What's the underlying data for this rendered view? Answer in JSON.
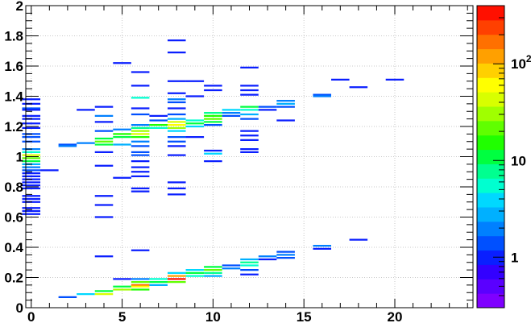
{
  "chart_data": {
    "type": "heatmap",
    "title": "",
    "xlabel": "",
    "ylabel": "",
    "xlim": [
      -0.3,
      24.3
    ],
    "ylim": [
      0,
      2
    ],
    "grid": true,
    "x_ticks": [
      0,
      5,
      10,
      15,
      20
    ],
    "y_ticks": [
      0,
      0.2,
      0.4,
      0.6,
      0.8,
      1,
      1.2,
      1.4,
      1.6,
      1.8,
      2
    ],
    "x_tick_labels": [
      "0",
      "5",
      "10",
      "15",
      "20"
    ],
    "y_tick_labels": [
      "0",
      "0.2",
      "0.4",
      "0.6",
      "0.8",
      "1",
      "1.2",
      "1.4",
      "1.6",
      "1.8",
      "2"
    ],
    "colorbar": {
      "scale": "log",
      "range": [
        0.3,
        400
      ],
      "tick_values": [
        1,
        10,
        100
      ],
      "tick_labels": [
        "1",
        "10",
        "10^2"
      ],
      "palette": [
        "#7f00ff",
        "#5a00ff",
        "#3300ff",
        "#0a1fff",
        "#0050ff",
        "#0080ff",
        "#00b0ff",
        "#00d8ff",
        "#00ffd0",
        "#00ff90",
        "#00ff40",
        "#20ff00",
        "#60ff00",
        "#a0ff00",
        "#d8ff00",
        "#ffff00",
        "#ffd000",
        "#ffa000",
        "#ff7000",
        "#ff4000",
        "#ff1000"
      ]
    },
    "cells": [
      {
        "x": 0,
        "y": 1.38,
        "v": 1
      },
      {
        "x": 0,
        "y": 1.35,
        "v": 1
      },
      {
        "x": 0,
        "y": 1.32,
        "v": 1.2
      },
      {
        "x": 0,
        "y": 1.31,
        "v": 1
      },
      {
        "x": 0,
        "y": 1.27,
        "v": 1
      },
      {
        "x": 0,
        "y": 1.25,
        "v": 1
      },
      {
        "x": 0,
        "y": 1.22,
        "v": 1
      },
      {
        "x": 0,
        "y": 1.19,
        "v": 1
      },
      {
        "x": 0,
        "y": 1.15,
        "v": 1.5
      },
      {
        "x": 0,
        "y": 1.13,
        "v": 1.2
      },
      {
        "x": 0,
        "y": 1.1,
        "v": 1.5
      },
      {
        "x": 0,
        "y": 1.05,
        "v": 2
      },
      {
        "x": 0,
        "y": 1.03,
        "v": 5
      },
      {
        "x": 0,
        "y": 1.01,
        "v": 40
      },
      {
        "x": 0,
        "y": 0.99,
        "v": 25
      },
      {
        "x": 0,
        "y": 0.97,
        "v": 10
      },
      {
        "x": 0,
        "y": 0.95,
        "v": 3
      },
      {
        "x": 0,
        "y": 0.93,
        "v": 2
      },
      {
        "x": 0,
        "y": 0.91,
        "v": 1.2
      },
      {
        "x": 0,
        "y": 0.89,
        "v": 1
      },
      {
        "x": 0,
        "y": 0.87,
        "v": 1
      },
      {
        "x": 0,
        "y": 0.85,
        "v": 1
      },
      {
        "x": 0,
        "y": 0.83,
        "v": 1
      },
      {
        "x": 0,
        "y": 0.81,
        "v": 1
      },
      {
        "x": 0,
        "y": 0.79,
        "v": 1
      },
      {
        "x": 0,
        "y": 0.74,
        "v": 1
      },
      {
        "x": 0,
        "y": 0.72,
        "v": 1
      },
      {
        "x": 0,
        "y": 0.7,
        "v": 1
      },
      {
        "x": 0,
        "y": 0.66,
        "v": 1
      },
      {
        "x": 0,
        "y": 0.64,
        "v": 1
      },
      {
        "x": 0,
        "y": 0.62,
        "v": 1
      },
      {
        "x": 1,
        "y": 0.91,
        "v": 1
      },
      {
        "x": 2,
        "y": 1.08,
        "v": 1.5
      },
      {
        "x": 2,
        "y": 1.07,
        "v": 2
      },
      {
        "x": 2,
        "y": 0.07,
        "v": 1.5
      },
      {
        "x": 3,
        "y": 1.09,
        "v": 2
      },
      {
        "x": 3,
        "y": 1.31,
        "v": 1
      },
      {
        "x": 3,
        "y": 0.09,
        "v": 4
      },
      {
        "x": 4,
        "y": 1.33,
        "v": 1
      },
      {
        "x": 4,
        "y": 1.27,
        "v": 2
      },
      {
        "x": 4,
        "y": 1.23,
        "v": 1
      },
      {
        "x": 4,
        "y": 1.17,
        "v": 1.2
      },
      {
        "x": 4,
        "y": 1.12,
        "v": 10
      },
      {
        "x": 4,
        "y": 1.1,
        "v": 20
      },
      {
        "x": 4,
        "y": 1.08,
        "v": 12
      },
      {
        "x": 4,
        "y": 1.03,
        "v": 1
      },
      {
        "x": 4,
        "y": 0.94,
        "v": 1
      },
      {
        "x": 4,
        "y": 0.74,
        "v": 1
      },
      {
        "x": 4,
        "y": 0.68,
        "v": 1
      },
      {
        "x": 4,
        "y": 0.6,
        "v": 1
      },
      {
        "x": 4,
        "y": 0.34,
        "v": 1
      },
      {
        "x": 4,
        "y": 0.11,
        "v": 10
      },
      {
        "x": 4,
        "y": 0.09,
        "v": 50
      },
      {
        "x": 5,
        "y": 1.62,
        "v": 1
      },
      {
        "x": 5,
        "y": 1.18,
        "v": 2
      },
      {
        "x": 5,
        "y": 1.15,
        "v": 15
      },
      {
        "x": 5,
        "y": 1.13,
        "v": 10
      },
      {
        "x": 5,
        "y": 1.08,
        "v": 3
      },
      {
        "x": 5,
        "y": 0.86,
        "v": 1
      },
      {
        "x": 5,
        "y": 0.19,
        "v": 1
      },
      {
        "x": 5,
        "y": 0.14,
        "v": 12
      },
      {
        "x": 5,
        "y": 0.12,
        "v": 30
      },
      {
        "x": 6,
        "y": 1.56,
        "v": 1
      },
      {
        "x": 6,
        "y": 1.47,
        "v": 1
      },
      {
        "x": 6,
        "y": 1.39,
        "v": 5
      },
      {
        "x": 6,
        "y": 1.32,
        "v": 1
      },
      {
        "x": 6,
        "y": 1.28,
        "v": 1.5
      },
      {
        "x": 6,
        "y": 1.21,
        "v": 2
      },
      {
        "x": 6,
        "y": 1.19,
        "v": 8
      },
      {
        "x": 6,
        "y": 1.17,
        "v": 30
      },
      {
        "x": 6,
        "y": 1.15,
        "v": 50
      },
      {
        "x": 6,
        "y": 1.13,
        "v": 15
      },
      {
        "x": 6,
        "y": 1.1,
        "v": 2
      },
      {
        "x": 6,
        "y": 1.07,
        "v": 1.5
      },
      {
        "x": 6,
        "y": 1.03,
        "v": 1.2
      },
      {
        "x": 6,
        "y": 1.01,
        "v": 1.2
      },
      {
        "x": 6,
        "y": 0.97,
        "v": 1
      },
      {
        "x": 6,
        "y": 0.93,
        "v": 1
      },
      {
        "x": 6,
        "y": 0.9,
        "v": 1
      },
      {
        "x": 6,
        "y": 0.87,
        "v": 1
      },
      {
        "x": 6,
        "y": 0.79,
        "v": 1
      },
      {
        "x": 6,
        "y": 0.77,
        "v": 1
      },
      {
        "x": 6,
        "y": 0.38,
        "v": 1
      },
      {
        "x": 6,
        "y": 0.19,
        "v": 2
      },
      {
        "x": 6,
        "y": 0.17,
        "v": 20
      },
      {
        "x": 6,
        "y": 0.15,
        "v": 200
      },
      {
        "x": 6,
        "y": 0.14,
        "v": 60
      },
      {
        "x": 6,
        "y": 0.12,
        "v": 15
      },
      {
        "x": 7,
        "y": 1.27,
        "v": 1
      },
      {
        "x": 7,
        "y": 1.24,
        "v": 1.5
      },
      {
        "x": 7,
        "y": 1.21,
        "v": 15
      },
      {
        "x": 7,
        "y": 1.19,
        "v": 6
      },
      {
        "x": 7,
        "y": 0.19,
        "v": 5
      },
      {
        "x": 7,
        "y": 0.17,
        "v": 10
      },
      {
        "x": 7,
        "y": 0.15,
        "v": 3
      },
      {
        "x": 8,
        "y": 1.77,
        "v": 1
      },
      {
        "x": 8,
        "y": 1.69,
        "v": 1
      },
      {
        "x": 8,
        "y": 1.5,
        "v": 1
      },
      {
        "x": 8,
        "y": 1.42,
        "v": 1
      },
      {
        "x": 8,
        "y": 1.38,
        "v": 2
      },
      {
        "x": 8,
        "y": 1.36,
        "v": 1.5
      },
      {
        "x": 8,
        "y": 1.32,
        "v": 1
      },
      {
        "x": 8,
        "y": 1.28,
        "v": 1.5
      },
      {
        "x": 8,
        "y": 1.25,
        "v": 3
      },
      {
        "x": 8,
        "y": 1.23,
        "v": 40
      },
      {
        "x": 8,
        "y": 1.21,
        "v": 60
      },
      {
        "x": 8,
        "y": 1.19,
        "v": 30
      },
      {
        "x": 8,
        "y": 1.17,
        "v": 4
      },
      {
        "x": 8,
        "y": 1.13,
        "v": 1.5
      },
      {
        "x": 8,
        "y": 1.1,
        "v": 1.2
      },
      {
        "x": 8,
        "y": 1.07,
        "v": 1
      },
      {
        "x": 8,
        "y": 1.01,
        "v": 1
      },
      {
        "x": 8,
        "y": 0.83,
        "v": 1
      },
      {
        "x": 8,
        "y": 0.79,
        "v": 1
      },
      {
        "x": 8,
        "y": 0.75,
        "v": 1
      },
      {
        "x": 8,
        "y": 0.23,
        "v": 4
      },
      {
        "x": 8,
        "y": 0.21,
        "v": 120
      },
      {
        "x": 8,
        "y": 0.19,
        "v": 300
      },
      {
        "x": 8,
        "y": 0.17,
        "v": 20
      },
      {
        "x": 9,
        "y": 1.5,
        "v": 1
      },
      {
        "x": 9,
        "y": 1.4,
        "v": 1
      },
      {
        "x": 9,
        "y": 1.24,
        "v": 5
      },
      {
        "x": 9,
        "y": 1.22,
        "v": 10
      },
      {
        "x": 9,
        "y": 1.2,
        "v": 4
      },
      {
        "x": 9,
        "y": 1.13,
        "v": 1
      },
      {
        "x": 9,
        "y": 0.25,
        "v": 4
      },
      {
        "x": 9,
        "y": 0.23,
        "v": 10
      },
      {
        "x": 9,
        "y": 0.21,
        "v": 5
      },
      {
        "x": 10,
        "y": 1.47,
        "v": 1
      },
      {
        "x": 10,
        "y": 1.44,
        "v": 1
      },
      {
        "x": 10,
        "y": 1.29,
        "v": 8
      },
      {
        "x": 10,
        "y": 1.27,
        "v": 15
      },
      {
        "x": 10,
        "y": 1.25,
        "v": 20
      },
      {
        "x": 10,
        "y": 1.23,
        "v": 10
      },
      {
        "x": 10,
        "y": 1.21,
        "v": 1.5
      },
      {
        "x": 10,
        "y": 1.04,
        "v": 1
      },
      {
        "x": 10,
        "y": 1.02,
        "v": 4
      },
      {
        "x": 10,
        "y": 0.97,
        "v": 1
      },
      {
        "x": 10,
        "y": 0.27,
        "v": 10
      },
      {
        "x": 10,
        "y": 0.25,
        "v": 20
      },
      {
        "x": 10,
        "y": 0.23,
        "v": 8
      },
      {
        "x": 10,
        "y": 0.21,
        "v": 3
      },
      {
        "x": 11,
        "y": 1.31,
        "v": 4
      },
      {
        "x": 11,
        "y": 1.29,
        "v": 2
      },
      {
        "x": 11,
        "y": 1.27,
        "v": 1.5
      },
      {
        "x": 11,
        "y": 0.28,
        "v": 1.5
      },
      {
        "x": 11,
        "y": 0.26,
        "v": 2
      },
      {
        "x": 12,
        "y": 1.59,
        "v": 1
      },
      {
        "x": 12,
        "y": 1.47,
        "v": 1
      },
      {
        "x": 12,
        "y": 1.44,
        "v": 1
      },
      {
        "x": 12,
        "y": 1.41,
        "v": 1
      },
      {
        "x": 12,
        "y": 1.33,
        "v": 10
      },
      {
        "x": 12,
        "y": 1.31,
        "v": 6
      },
      {
        "x": 12,
        "y": 1.28,
        "v": 3
      },
      {
        "x": 12,
        "y": 1.25,
        "v": 1.5
      },
      {
        "x": 12,
        "y": 1.17,
        "v": 1
      },
      {
        "x": 12,
        "y": 1.14,
        "v": 1
      },
      {
        "x": 12,
        "y": 1.11,
        "v": 1
      },
      {
        "x": 12,
        "y": 1.05,
        "v": 1
      },
      {
        "x": 12,
        "y": 1.03,
        "v": 1
      },
      {
        "x": 12,
        "y": 0.32,
        "v": 3
      },
      {
        "x": 12,
        "y": 0.3,
        "v": 8
      },
      {
        "x": 12,
        "y": 0.28,
        "v": 5
      },
      {
        "x": 12,
        "y": 0.25,
        "v": 1.5
      },
      {
        "x": 12,
        "y": 0.22,
        "v": 1
      },
      {
        "x": 13,
        "y": 1.33,
        "v": 1.5
      },
      {
        "x": 13,
        "y": 1.31,
        "v": 1
      },
      {
        "x": 13,
        "y": 0.34,
        "v": 2
      },
      {
        "x": 13,
        "y": 0.32,
        "v": 1
      },
      {
        "x": 14,
        "y": 1.37,
        "v": 2
      },
      {
        "x": 14,
        "y": 1.35,
        "v": 2.5
      },
      {
        "x": 14,
        "y": 1.33,
        "v": 1.5
      },
      {
        "x": 14,
        "y": 1.24,
        "v": 1
      },
      {
        "x": 14,
        "y": 0.37,
        "v": 1.5
      },
      {
        "x": 14,
        "y": 0.35,
        "v": 2
      },
      {
        "x": 14,
        "y": 0.33,
        "v": 1.5
      },
      {
        "x": 16,
        "y": 1.41,
        "v": 1.2
      },
      {
        "x": 16,
        "y": 1.4,
        "v": 2
      },
      {
        "x": 16,
        "y": 0.41,
        "v": 2
      },
      {
        "x": 16,
        "y": 0.39,
        "v": 1
      },
      {
        "x": 17,
        "y": 1.51,
        "v": 1
      },
      {
        "x": 18,
        "y": 1.46,
        "v": 1
      },
      {
        "x": 18,
        "y": 0.45,
        "v": 1
      },
      {
        "x": 20,
        "y": 1.51,
        "v": 1
      }
    ]
  }
}
